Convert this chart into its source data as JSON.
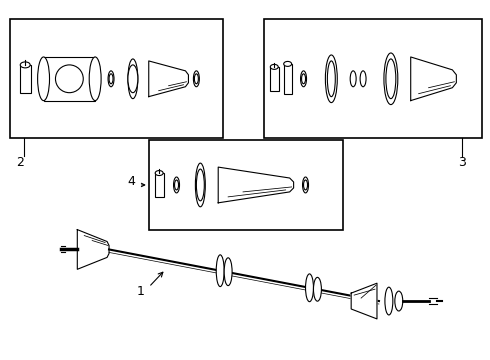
{
  "background_color": "#ffffff",
  "line_color": "#000000",
  "lw": 0.8
}
